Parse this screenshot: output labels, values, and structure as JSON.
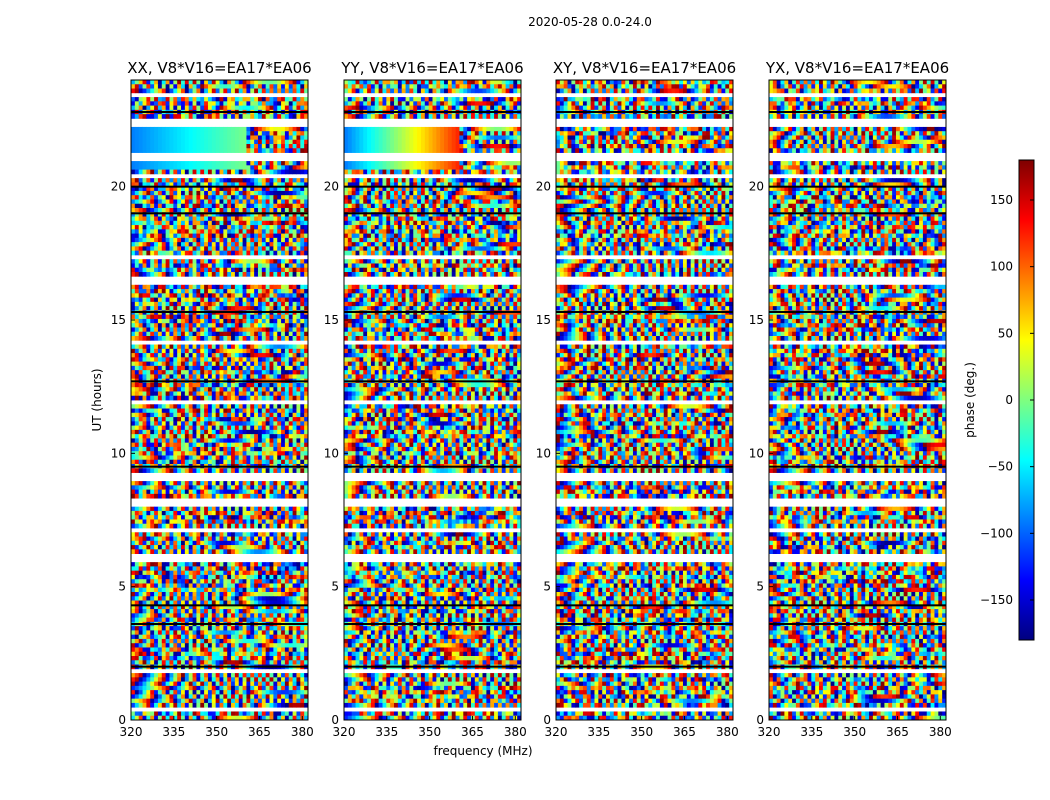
{
  "figure_title": "2020-05-28 0.0-24.0",
  "chart_data": {
    "type": "heatmap",
    "title": "2020-05-28 0.0-24.0",
    "xlabel": "frequency (MHz)",
    "ylabel": "UT (hours)",
    "xlim": [
      320,
      382
    ],
    "ylim": [
      0,
      24
    ],
    "x_ticks": [
      320,
      335,
      350,
      365,
      380
    ],
    "y_ticks": [
      0,
      5,
      10,
      15,
      20
    ],
    "colorbar": {
      "label": "phase (deg.)",
      "range": [
        -180,
        180
      ],
      "ticks": [
        -150,
        -100,
        -50,
        0,
        50,
        100,
        150
      ],
      "colormap": "jet",
      "colors": [
        "#00007f",
        "#0000ff",
        "#007fff",
        "#00ffff",
        "#7fff7f",
        "#ffff00",
        "#ff7f00",
        "#ff0000",
        "#7f0000"
      ]
    },
    "panels": [
      {
        "title": "XX, V8*V16=EA17*EA06",
        "pol": "XX"
      },
      {
        "title": "YY, V8*V16=EA17*EA06",
        "pol": "YY"
      },
      {
        "title": "XY, V8*V16=EA17*EA06",
        "pol": "XY"
      },
      {
        "title": "YX, V8*V16=EA17*EA06",
        "pol": "YX"
      }
    ],
    "grid": false
  }
}
